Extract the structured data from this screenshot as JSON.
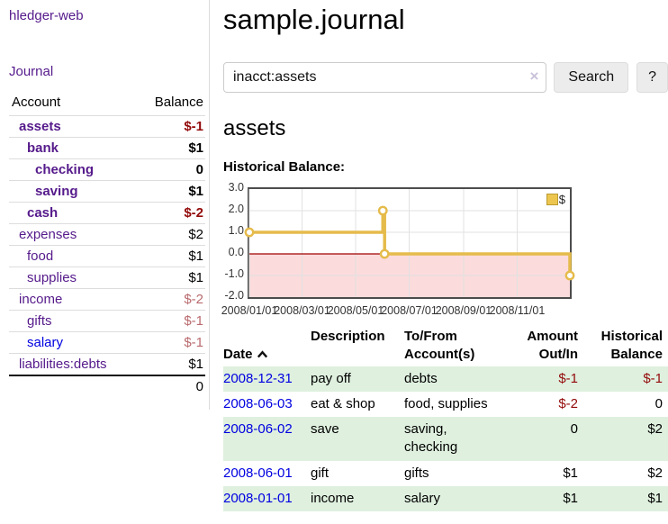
{
  "palette": {
    "link_purple": "#551a8b",
    "link_blue": "#0000e0",
    "negative_strong": "#930a0a",
    "negative_muted": "#b96a6e",
    "row_green": "#dff0df",
    "chart_gold": "#e5bb4b",
    "chart_negative_fill": "#fbdbdb",
    "chart_zero_line": "#a00000"
  },
  "sidebar": {
    "app_title": "hledger-web",
    "journal_label": "Journal",
    "accounts": {
      "headers": {
        "account": "Account",
        "balance": "Balance"
      },
      "rows": [
        {
          "name": "assets",
          "balance": "$-1",
          "indent": 1,
          "bold": true,
          "tone": "neg",
          "link": "purple"
        },
        {
          "name": "bank",
          "balance": "$1",
          "indent": 2,
          "bold": true,
          "tone": null,
          "link": "purple"
        },
        {
          "name": "checking",
          "balance": "0",
          "indent": 3,
          "bold": true,
          "tone": null,
          "link": "purple"
        },
        {
          "name": "saving",
          "balance": "$1",
          "indent": 3,
          "bold": true,
          "tone": null,
          "link": "purple"
        },
        {
          "name": "cash",
          "balance": "$-2",
          "indent": 2,
          "bold": true,
          "tone": "neg",
          "link": "purple"
        },
        {
          "name": "expenses",
          "balance": "$2",
          "indent": 1,
          "bold": false,
          "tone": null,
          "link": "purple"
        },
        {
          "name": "food",
          "balance": "$1",
          "indent": 2,
          "bold": false,
          "tone": null,
          "link": "purple"
        },
        {
          "name": "supplies",
          "balance": "$1",
          "indent": 2,
          "bold": false,
          "tone": null,
          "link": "purple"
        },
        {
          "name": "income",
          "balance": "$-2",
          "indent": 1,
          "bold": false,
          "tone": "neg-muted",
          "link": "purple"
        },
        {
          "name": "gifts",
          "balance": "$-1",
          "indent": 2,
          "bold": false,
          "tone": "neg-muted",
          "link": "purple"
        },
        {
          "name": "salary",
          "balance": "$-1",
          "indent": 2,
          "bold": false,
          "tone": "neg-muted",
          "link": "blue"
        },
        {
          "name": "liabilities:debts",
          "balance": "$1",
          "indent": 1,
          "bold": false,
          "tone": null,
          "link": "purple"
        }
      ],
      "total": "0"
    }
  },
  "main": {
    "title": "sample.journal",
    "search": {
      "value": "inacct:assets",
      "clear_icon": "×",
      "search_button": "Search",
      "help_button": "?"
    },
    "account_heading": "assets",
    "chart_title": "Historical Balance:",
    "register": {
      "headers": {
        "date": "Date",
        "sort_icon": "sort-ascending-icon",
        "description": "Description",
        "accounts": "To/From\nAccount(s)",
        "amount": "Amount\nOut/In",
        "balance": "Historical\nBalance"
      },
      "rows": [
        {
          "date": "2008-12-31",
          "description": "pay off",
          "accounts": "debts",
          "amount": "$-1",
          "amount_tone": "neg",
          "balance": "$-1",
          "balance_tone": "neg"
        },
        {
          "date": "2008-06-03",
          "description": "eat & shop",
          "accounts": "food, supplies",
          "amount": "$-2",
          "amount_tone": "neg",
          "balance": "0",
          "balance_tone": null
        },
        {
          "date": "2008-06-02",
          "description": "save",
          "accounts": "saving,\nchecking",
          "amount": "0",
          "amount_tone": null,
          "balance": "$2",
          "balance_tone": null
        },
        {
          "date": "2008-06-01",
          "description": "gift",
          "accounts": "gifts",
          "amount": "$1",
          "amount_tone": null,
          "balance": "$2",
          "balance_tone": null
        },
        {
          "date": "2008-01-01",
          "description": "income",
          "accounts": "salary",
          "amount": "$1",
          "amount_tone": null,
          "balance": "$1",
          "balance_tone": null
        }
      ]
    }
  },
  "chart_data": {
    "type": "line",
    "title": "Historical Balance:",
    "step": "after",
    "series": [
      {
        "name": "$",
        "color": "#e5bb4b",
        "points": [
          {
            "date": "2008-01-01",
            "value": 1
          },
          {
            "date": "2008-06-01",
            "value": 2
          },
          {
            "date": "2008-06-03",
            "value": 0
          },
          {
            "date": "2008-12-31",
            "value": -1
          }
        ]
      }
    ],
    "x_range": [
      "2008-01-01",
      "2008-12-31"
    ],
    "x_tick_labels": [
      "2008/01/01",
      "2008/03/01",
      "2008/05/01",
      "2008/07/01",
      "2008/09/01",
      "2008/11/01"
    ],
    "y_tick_labels": [
      "3.0",
      "2.0",
      "1.0",
      "0.0",
      "-1.0",
      "-2.0"
    ],
    "ylim": [
      -2,
      3
    ],
    "grid": true,
    "negative_region_color": "#fbdbdb",
    "zero_line_color": "#a00000",
    "legend": {
      "label": "$",
      "position": "top-right"
    }
  }
}
